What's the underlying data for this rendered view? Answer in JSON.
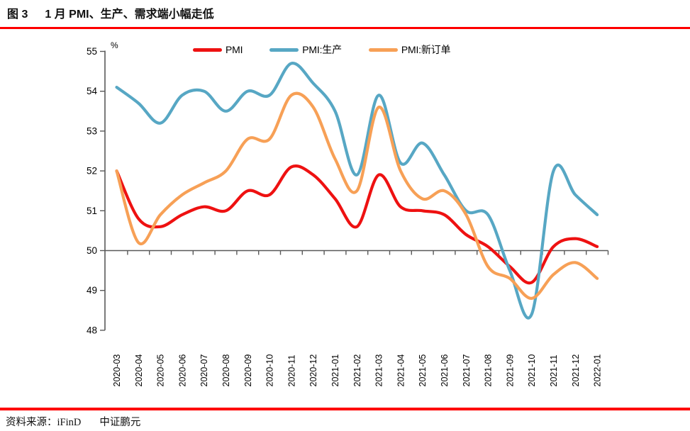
{
  "header": {
    "figure_label": "图 3",
    "title": "1 月 PMI、生产、需求端小幅走低"
  },
  "footer": {
    "source_label": "资料来源：iFinD",
    "org": "中证鹏元"
  },
  "colors": {
    "accent_rule": "#fe0000",
    "axis": "#595959",
    "tick_text": "#000000"
  },
  "chart_data": {
    "type": "line",
    "unit_label": "%",
    "title": "",
    "xlabel": "",
    "ylabel": "%",
    "ylim": [
      48,
      55
    ],
    "ytick_step": 1,
    "baseline_axis_value": 50,
    "grid": false,
    "legend_position": "top",
    "categories": [
      "2020-03",
      "2020-04",
      "2020-05",
      "2020-06",
      "2020-07",
      "2020-08",
      "2020-09",
      "2020-10",
      "2020-11",
      "2020-12",
      "2021-01",
      "2021-02",
      "2021-03",
      "2021-04",
      "2021-05",
      "2021-06",
      "2021-07",
      "2021-08",
      "2021-09",
      "2021-10",
      "2021-11",
      "2021-12",
      "2022-01"
    ],
    "series": [
      {
        "name": "PMI",
        "key": "pmi",
        "color": "#ee1111",
        "values": [
          52.0,
          50.8,
          50.6,
          50.9,
          51.1,
          51.0,
          51.5,
          51.4,
          52.1,
          51.9,
          51.3,
          50.6,
          51.9,
          51.1,
          51.0,
          50.9,
          50.4,
          50.1,
          49.6,
          49.2,
          50.1,
          50.3,
          50.1
        ]
      },
      {
        "name": "PMI:生产",
        "key": "production",
        "color": "#57a7c4",
        "values": [
          54.1,
          53.7,
          53.2,
          53.9,
          54.0,
          53.5,
          54.0,
          53.9,
          54.7,
          54.2,
          53.5,
          51.9,
          53.9,
          52.2,
          52.7,
          51.9,
          51.0,
          50.9,
          49.5,
          48.4,
          52.0,
          51.4,
          50.9
        ]
      },
      {
        "name": "PMI:新订单",
        "key": "new_orders",
        "color": "#f7a056",
        "values": [
          52.0,
          50.2,
          50.9,
          51.4,
          51.7,
          52.0,
          52.8,
          52.8,
          53.9,
          53.6,
          52.3,
          51.5,
          53.6,
          52.0,
          51.3,
          51.5,
          50.9,
          49.6,
          49.3,
          48.8,
          49.4,
          49.7,
          49.3
        ]
      }
    ]
  }
}
